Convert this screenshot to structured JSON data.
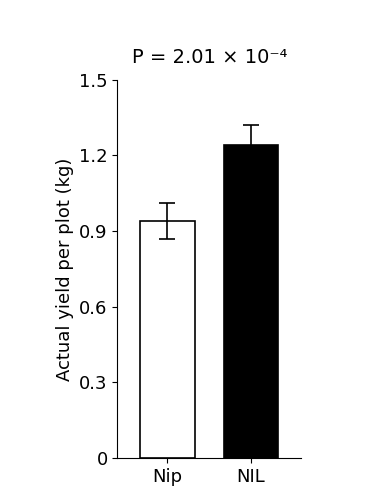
{
  "chart_data": {
    "type": "bar",
    "title": "P = 2.01 × 10⁻⁴",
    "y_label": "Actual yield per plot (kg)",
    "categories": [
      "Nip",
      "NIL"
    ],
    "values": [
      0.94,
      1.24
    ],
    "errors": [
      0.07,
      0.08
    ],
    "colors": [
      "#ffffff",
      "#000000"
    ],
    "ylim": [
      0,
      1.5
    ],
    "yticks": [
      0,
      0.3,
      0.6,
      0.9,
      1.2,
      1.5
    ],
    "grid": false
  }
}
